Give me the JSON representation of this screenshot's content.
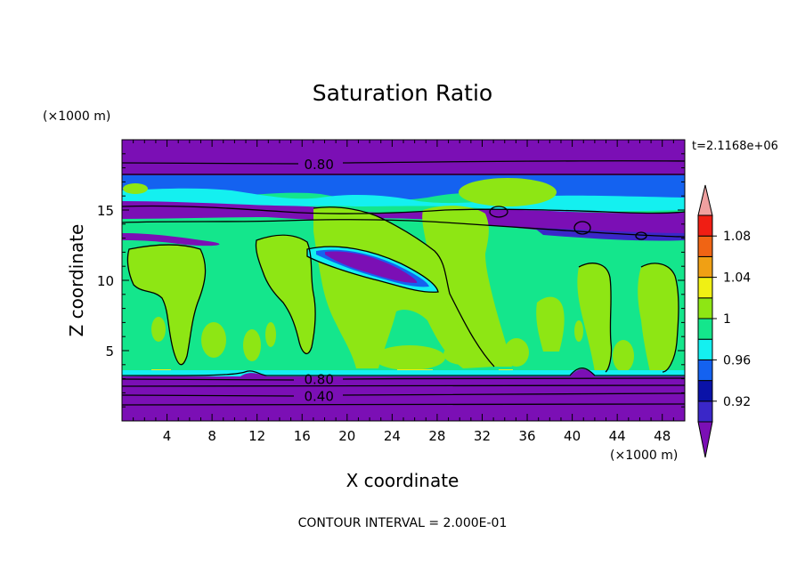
{
  "chart_data": {
    "type": "heatmap",
    "title": "Saturation Ratio",
    "xlabel": "X coordinate",
    "ylabel": "Z coordinate",
    "x_unit": "(×1000 m)",
    "y_unit": "(×1000 m)",
    "time_label": "t=2.1168e+06",
    "footer": "CONTOUR INTERVAL = 2.000E-01",
    "xlim": [
      0,
      50
    ],
    "ylim": [
      0,
      20
    ],
    "x_ticks": [
      4,
      8,
      12,
      16,
      20,
      24,
      28,
      32,
      36,
      40,
      44,
      48
    ],
    "y_ticks": [
      5,
      10,
      15
    ],
    "colorbar": {
      "levels": [
        0.9,
        0.92,
        0.94,
        0.96,
        0.98,
        1.0,
        1.02,
        1.04,
        1.06,
        1.08,
        1.1
      ],
      "tick_labels": [
        "0.92",
        "0.96",
        "1",
        "1.04",
        "1.08"
      ],
      "colors": [
        "#7b0fb5",
        "#3a27c8",
        "#0a12a8",
        "#1462f0",
        "#14f0f0",
        "#14e68c",
        "#8ee614",
        "#f0f014",
        "#f0a014",
        "#f06414",
        "#f01e14",
        "#f0a0a0"
      ]
    },
    "contour_labels": [
      {
        "text": "0.80",
        "x": 17.5,
        "y": 18.3
      },
      {
        "text": "0.80",
        "x": 17.5,
        "y": 3.0
      },
      {
        "text": "0.40",
        "x": 17.5,
        "y": 1.8
      }
    ]
  }
}
